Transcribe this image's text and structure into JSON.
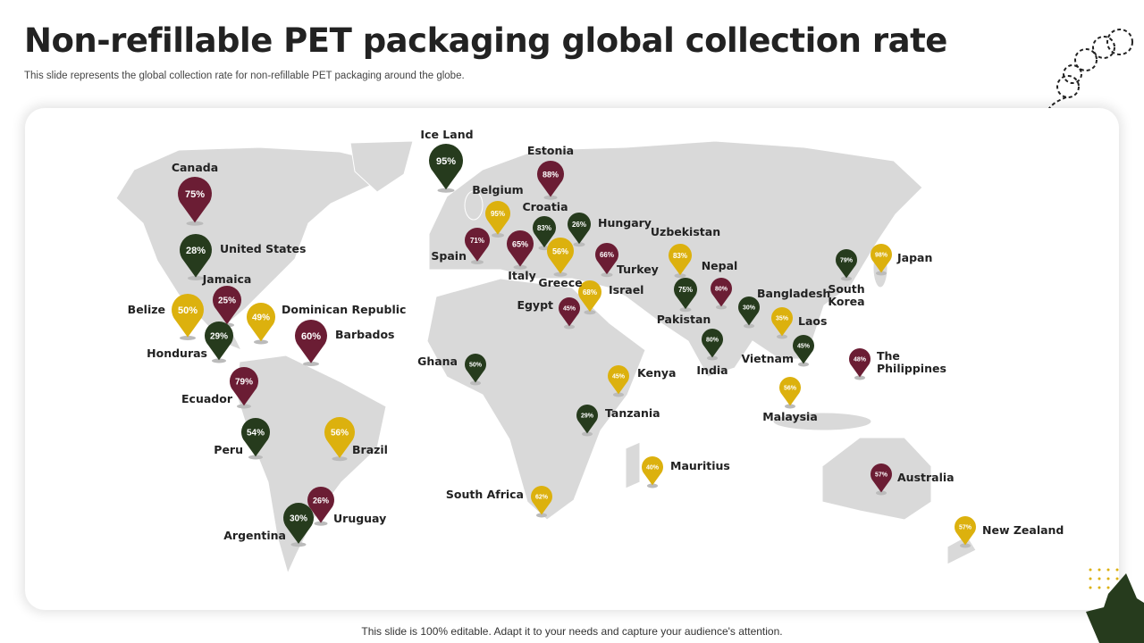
{
  "header": {
    "title": "Non-refillable PET packaging global collection rate",
    "subtitle": "This slide represents the global collection rate for non-refillable PET packaging around the globe."
  },
  "colors": {
    "maroon": "#6b1d34",
    "green": "#263b1d",
    "gold": "#dcb10e",
    "land": "#d9d9d9"
  },
  "pins": [
    {
      "country": "Canada",
      "value": "75%",
      "color": "maroon"
    },
    {
      "country": "United States",
      "value": "28%",
      "color": "green"
    },
    {
      "country": "Jamaica",
      "value": "25%",
      "color": "maroon"
    },
    {
      "country": "Belize",
      "value": "50%",
      "color": "gold"
    },
    {
      "country": "Dominican Republic",
      "value": "49%",
      "color": "gold"
    },
    {
      "country": "Honduras",
      "value": "29%",
      "color": "green"
    },
    {
      "country": "Barbados",
      "value": "60%",
      "color": "maroon"
    },
    {
      "country": "Ecuador",
      "value": "79%",
      "color": "maroon"
    },
    {
      "country": "Peru",
      "value": "54%",
      "color": "green"
    },
    {
      "country": "Brazil",
      "value": "56%",
      "color": "gold"
    },
    {
      "country": "Uruguay",
      "value": "26%",
      "color": "maroon"
    },
    {
      "country": "Argentina",
      "value": "30%",
      "color": "green"
    },
    {
      "country": "Ice Land",
      "value": "95%",
      "color": "green"
    },
    {
      "country": "Estonia",
      "value": "88%",
      "color": "maroon"
    },
    {
      "country": "Belgium",
      "value": "95%",
      "color": "gold"
    },
    {
      "country": "Croatia",
      "value": "83%",
      "color": "green"
    },
    {
      "country": "Hungary",
      "value": "26%",
      "color": "green"
    },
    {
      "country": "Spain",
      "value": "71%",
      "color": "maroon"
    },
    {
      "country": "Italy",
      "value": "65%",
      "color": "maroon"
    },
    {
      "country": "Greece",
      "value": "56%",
      "color": "gold"
    },
    {
      "country": "Turkey",
      "value": "66%",
      "color": "maroon"
    },
    {
      "country": "Israel",
      "value": "68%",
      "color": "gold"
    },
    {
      "country": "Egypt",
      "value": "45%",
      "color": "maroon"
    },
    {
      "country": "Uzbekistan",
      "value": "83%",
      "color": "gold"
    },
    {
      "country": "Nepal",
      "value": "80%",
      "color": "maroon"
    },
    {
      "country": "Pakistan",
      "value": "75%",
      "color": "green"
    },
    {
      "country": "Bangladesh",
      "value": "30%",
      "color": "green"
    },
    {
      "country": "Laos",
      "value": "35%",
      "color": "gold"
    },
    {
      "country": "India",
      "value": "80%",
      "color": "green"
    },
    {
      "country": "Vietnam",
      "value": "45%",
      "color": "green"
    },
    {
      "country": "Malaysia",
      "value": "56%",
      "color": "gold"
    },
    {
      "country": "The\nPhilippines",
      "value": "48%",
      "color": "maroon"
    },
    {
      "country": "South\nKorea",
      "value": "79%",
      "color": "green"
    },
    {
      "country": "Japan",
      "value": "98%",
      "color": "gold"
    },
    {
      "country": "Ghana",
      "value": "50%",
      "color": "green"
    },
    {
      "country": "Kenya",
      "value": "45%",
      "color": "gold"
    },
    {
      "country": "Tanzania",
      "value": "29%",
      "color": "green"
    },
    {
      "country": "Mauritius",
      "value": "40%",
      "color": "gold"
    },
    {
      "country": "South Africa",
      "value": "62%",
      "color": "gold"
    },
    {
      "country": "Australia",
      "value": "57%",
      "color": "maroon"
    },
    {
      "country": "New Zealand",
      "value": "57%",
      "color": "gold"
    }
  ],
  "footer": "This slide is 100% editable. Adapt it to your needs and capture your audience's attention."
}
